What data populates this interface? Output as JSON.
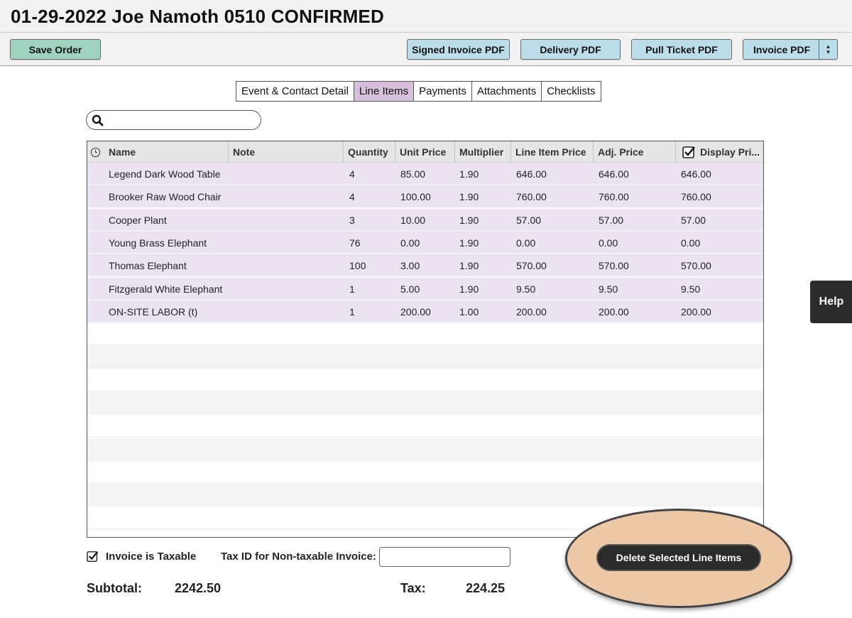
{
  "window": {
    "title": "01-29-2022 Joe Namoth 0510 CONFIRMED"
  },
  "toolbar": {
    "save_label": "Save Order",
    "signed_invoice_label": "Signed Invoice PDF",
    "delivery_label": "Delivery PDF",
    "pull_ticket_label": "Pull Ticket PDF",
    "invoice_label": "Invoice PDF",
    "colors": {
      "save": "#9fd3c0",
      "pdf": "#bcdeea"
    }
  },
  "tabs": [
    {
      "label": "Event & Contact Detail",
      "active": false
    },
    {
      "label": "Line Items",
      "active": true
    },
    {
      "label": "Payments",
      "active": false
    },
    {
      "label": "Attachments",
      "active": false
    },
    {
      "label": "Checklists",
      "active": false
    }
  ],
  "search": {
    "value": "",
    "placeholder": ""
  },
  "table": {
    "columns": [
      "Name",
      "Note",
      "Quantity",
      "Unit Price",
      "Multiplier",
      "Line Item Price",
      "Adj. Price",
      "Display Pri..."
    ],
    "display_price_checked": true,
    "rows": [
      {
        "name": "Legend Dark Wood Table",
        "note": "",
        "quantity": "4",
        "unit_price": "85.00",
        "multiplier": "1.90",
        "line_item_price": "646.00",
        "adj_price": "646.00",
        "display_price": "646.00"
      },
      {
        "name": "Brooker Raw Wood Chair",
        "note": "",
        "quantity": "4",
        "unit_price": "100.00",
        "multiplier": "1.90",
        "line_item_price": "760.00",
        "adj_price": "760.00",
        "display_price": "760.00"
      },
      {
        "name": "Cooper Plant",
        "note": "",
        "quantity": "3",
        "unit_price": "10.00",
        "multiplier": "1.90",
        "line_item_price": "57.00",
        "adj_price": "57.00",
        "display_price": "57.00"
      },
      {
        "name": "Young Brass Elephant",
        "note": "",
        "quantity": "76",
        "unit_price": "0.00",
        "multiplier": "1.90",
        "line_item_price": "0.00",
        "adj_price": "0.00",
        "display_price": "0.00"
      },
      {
        "name": "Thomas Elephant",
        "note": "",
        "quantity": "100",
        "unit_price": "3.00",
        "multiplier": "1.90",
        "line_item_price": "570.00",
        "adj_price": "570.00",
        "display_price": "570.00"
      },
      {
        "name": "Fitzgerald White Elephant",
        "note": "",
        "quantity": "1",
        "unit_price": "5.00",
        "multiplier": "1.90",
        "line_item_price": "9.50",
        "adj_price": "9.50",
        "display_price": "9.50"
      },
      {
        "name": "ON-SITE LABOR (t)",
        "note": "",
        "quantity": "1",
        "unit_price": "200.00",
        "multiplier": "1.00",
        "line_item_price": "200.00",
        "adj_price": "200.00",
        "display_price": "200.00"
      }
    ],
    "row_color": "#ebe4f0"
  },
  "footer": {
    "taxable_label": "Invoice is Taxable",
    "taxable_checked": true,
    "tax_id_label": "Tax ID for Non-taxable Invoice:",
    "tax_id_value": "",
    "subtotal_label": "Subtotal:",
    "subtotal_value": "2242.50",
    "tax_label": "Tax:",
    "tax_value": "224.25",
    "delete_label": "Delete Selected Line Items"
  },
  "help": {
    "label": "Help"
  },
  "highlight": {
    "color": "#edc8a6"
  }
}
